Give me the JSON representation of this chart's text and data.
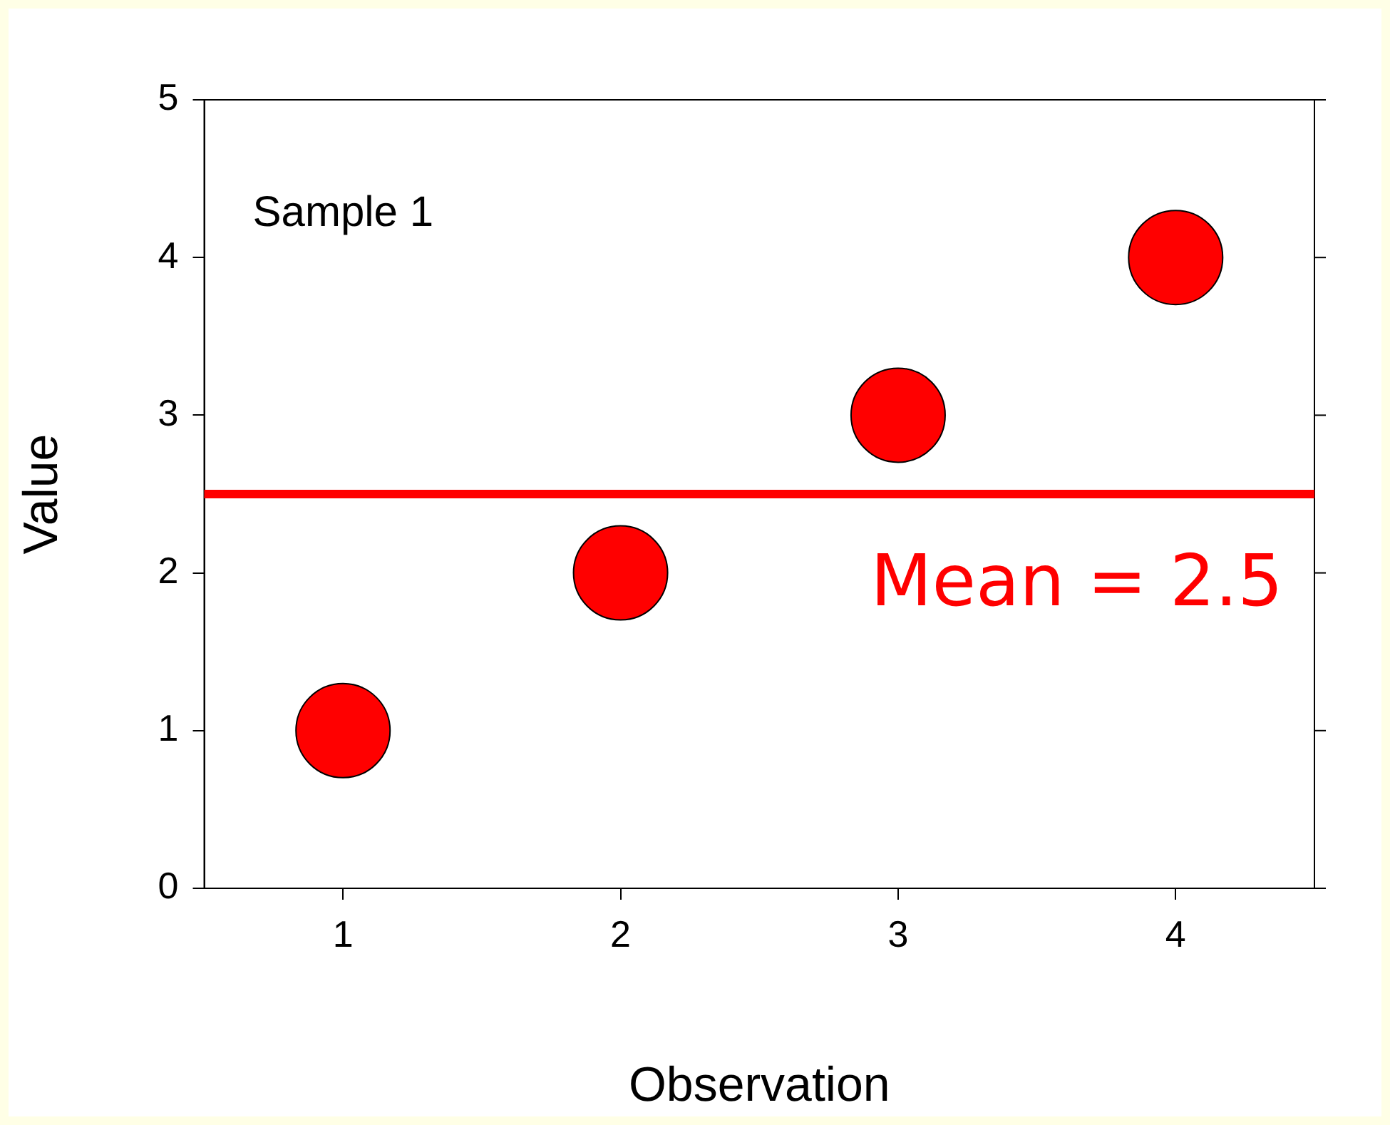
{
  "chart_data": {
    "type": "scatter",
    "xlabel": "Observation",
    "ylabel": "Value",
    "x": [
      1,
      2,
      3,
      4
    ],
    "series": [
      {
        "color": "#ff0000",
        "values": [
          1,
          2,
          3,
          4
        ]
      }
    ],
    "xlim": [
      0.5,
      4.5
    ],
    "xticks": [
      1,
      2,
      3,
      4
    ],
    "ylim": [
      0,
      5
    ],
    "yticks": [
      0,
      1,
      2,
      3,
      4,
      5
    ],
    "marker": "circle",
    "legend": false,
    "ref_lines": [
      {
        "axis": "y",
        "value": 2.5,
        "label": "Mean = 2.5",
        "color": "#ff0000"
      }
    ],
    "annotations": [
      "Sample 1"
    ]
  }
}
